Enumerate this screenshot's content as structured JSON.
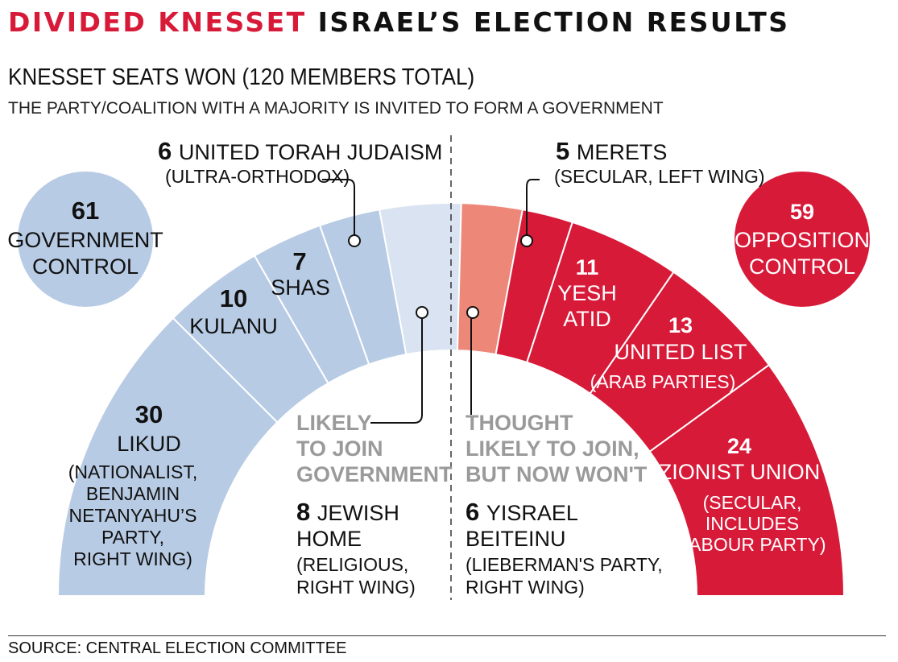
{
  "title": {
    "part1": "DIVIDED KNESSET",
    "part2": "ISRAEL’S ELECTION RESULTS"
  },
  "subtitle": "KNESSET SEATS WON (120 MEMBERS TOTAL)",
  "note": "THE PARTY/COALITION WITH A MAJORITY IS INVITED TO FORM A GOVERNMENT",
  "source": "SOURCE: CENTRAL ELECTION COMMITTEE",
  "colors": {
    "government": "#b8cbe4",
    "government_likely": "#dae3f1",
    "opposition": "#d81a39",
    "opposition_thought": "#ed8778"
  },
  "chart_data": {
    "type": "pie",
    "variant": "semicircle-parliament",
    "total_seats": 120,
    "parties": [
      {
        "seats": 30,
        "name": "LIKUD",
        "desc": [
          "(NATIONALIST,",
          "BENJAMIN",
          "NETANYAHU’S",
          "PARTY,",
          "RIGHT WING)"
        ],
        "bloc": "government"
      },
      {
        "seats": 10,
        "name": "KULANU",
        "desc": [],
        "bloc": "government"
      },
      {
        "seats": 7,
        "name": "SHAS",
        "desc": [],
        "bloc": "government"
      },
      {
        "seats": 6,
        "name": "UNITED TORAH JUDAISM",
        "desc": [
          "(ULTRA-ORTHODOX)"
        ],
        "bloc": "government"
      },
      {
        "seats": 8,
        "name": "JEWISH",
        "name2": "HOME",
        "desc": [
          "(RELIGIOUS,",
          "RIGHT WING)"
        ],
        "bloc": "government_likely"
      },
      {
        "seats": 6,
        "name": "YISRAEL",
        "name2": "BEITEINU",
        "desc": [
          "(LIEBERMAN'S PARTY,",
          "RIGHT WING)"
        ],
        "bloc": "opposition_thought"
      },
      {
        "seats": 5,
        "name": "MERETS",
        "desc": [
          "(SECULAR, LEFT WING)"
        ],
        "bloc": "opposition"
      },
      {
        "seats": 11,
        "name": "YESH",
        "name2": "ATID",
        "desc": [],
        "bloc": "opposition"
      },
      {
        "seats": 13,
        "name": "UNITED LIST",
        "desc": [
          "(ARAB PARTIES)"
        ],
        "bloc": "opposition"
      },
      {
        "seats": 24,
        "name": "ZIONIST UNION",
        "desc": [
          "(SECULAR,",
          "INCLUDES",
          "LABOUR PARTY)"
        ],
        "bloc": "opposition"
      }
    ],
    "totals": [
      {
        "seats": 61,
        "line1": "GOVERNMENT",
        "line2": "CONTROL",
        "bloc": "government"
      },
      {
        "seats": 59,
        "line1": "OPPOSITION",
        "line2": "CONTROL",
        "bloc": "opposition"
      }
    ],
    "annotations": [
      {
        "lines": [
          "LIKELY",
          "TO JOIN",
          "GOVERNMENT"
        ],
        "party": "JEWISH"
      },
      {
        "lines": [
          "THOUGHT",
          "LIKELY TO JOIN,",
          "BUT NOW WON'T"
        ],
        "party": "YISRAEL"
      }
    ]
  }
}
